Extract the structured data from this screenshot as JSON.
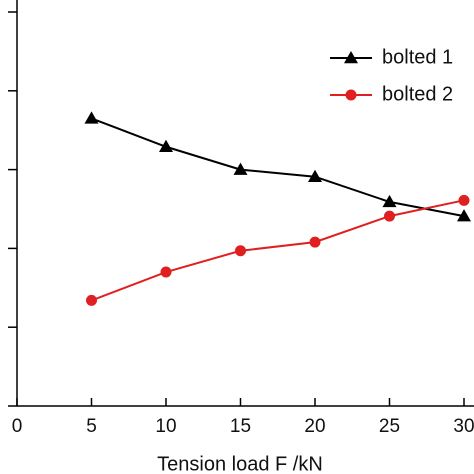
{
  "chart_data": {
    "type": "line",
    "x_label": "Tension load F /kN",
    "x": [
      5,
      10,
      15,
      20,
      25,
      30
    ],
    "series": [
      {
        "name": "bolted 1",
        "color": "#000000",
        "marker": "triangle",
        "values": [
          3.65,
          3.29,
          3.0,
          2.91,
          2.59,
          2.41
        ]
      },
      {
        "name": "bolted 2",
        "color": "#e02020",
        "marker": "circle",
        "values": [
          1.34,
          1.7,
          1.97,
          2.08,
          2.41,
          2.61
        ]
      }
    ],
    "xlim": [
      0,
      30
    ],
    "xticks": [
      0,
      5,
      10,
      15,
      20,
      25,
      30
    ],
    "ylim": [
      0,
      5
    ],
    "yticks": [
      0,
      1,
      2,
      3,
      4,
      5
    ],
    "legend": "top-right"
  }
}
